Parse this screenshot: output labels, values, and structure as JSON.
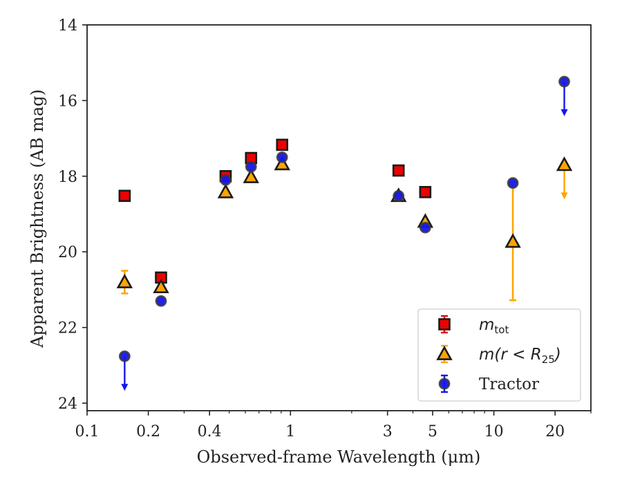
{
  "chart_data": {
    "type": "scatter",
    "xlabel": "Observed-frame Wavelength (μm)",
    "ylabel": "Apparent Brightness (AB mag)",
    "x_scale": "log",
    "xlim": [
      0.1,
      30
    ],
    "ylim": [
      24.2,
      14
    ],
    "y_inverted": true,
    "xticks": [
      {
        "value": 0.1,
        "label": "0.1"
      },
      {
        "value": 0.2,
        "label": "0.2"
      },
      {
        "value": 0.4,
        "label": "0.4"
      },
      {
        "value": 1,
        "label": "1"
      },
      {
        "value": 3,
        "label": "3"
      },
      {
        "value": 5,
        "label": "5"
      },
      {
        "value": 10,
        "label": "10"
      },
      {
        "value": 20,
        "label": "20"
      }
    ],
    "yticks": [
      {
        "value": 14,
        "label": "14"
      },
      {
        "value": 16,
        "label": "16"
      },
      {
        "value": 18,
        "label": "18"
      },
      {
        "value": 20,
        "label": "20"
      },
      {
        "value": 22,
        "label": "22"
      },
      {
        "value": 24,
        "label": "24"
      }
    ],
    "legend_position": "lower-right",
    "series": [
      {
        "name": "m_tot",
        "legend_main": "m",
        "legend_sub": "tot",
        "marker": "square",
        "face_color": "#ee0000",
        "edge_color": "#1a1a1a",
        "error_color": "#ee0000",
        "points": [
          {
            "x": 0.153,
            "y": 18.52
          },
          {
            "x": 0.231,
            "y": 20.68
          },
          {
            "x": 0.48,
            "y": 18.0
          },
          {
            "x": 0.64,
            "y": 17.52
          },
          {
            "x": 0.91,
            "y": 17.17
          },
          {
            "x": 3.4,
            "y": 17.85
          },
          {
            "x": 4.6,
            "y": 18.42
          }
        ]
      },
      {
        "name": "m(r < R25)",
        "legend_main": "m(r < R",
        "legend_sub": "25",
        "legend_end": ")",
        "marker": "triangle",
        "face_color": "#ffa500",
        "edge_color": "#1a1a1a",
        "error_color": "#ffa500",
        "points": [
          {
            "x": 0.153,
            "y": 20.8,
            "err": 0.3
          },
          {
            "x": 0.231,
            "y": 20.93
          },
          {
            "x": 0.48,
            "y": 18.42
          },
          {
            "x": 0.64,
            "y": 18.02
          },
          {
            "x": 0.91,
            "y": 17.68
          },
          {
            "x": 3.4,
            "y": 18.52
          },
          {
            "x": 4.6,
            "y": 19.2
          },
          {
            "x": 12.4,
            "y": 19.73,
            "err_low": 1.45,
            "err_high": 1.55
          },
          {
            "x": 22.2,
            "y": 17.7,
            "upper_limit": true
          }
        ]
      },
      {
        "name": "Tractor",
        "marker": "circle",
        "face_color": "#1515ee",
        "edge_color": "#3a3a3a",
        "error_color": "#1515ee",
        "points": [
          {
            "x": 0.153,
            "y": 22.76,
            "upper_limit": true
          },
          {
            "x": 0.231,
            "y": 21.3
          },
          {
            "x": 0.48,
            "y": 18.1
          },
          {
            "x": 0.64,
            "y": 17.75
          },
          {
            "x": 0.91,
            "y": 17.5
          },
          {
            "x": 3.4,
            "y": 18.52
          },
          {
            "x": 4.6,
            "y": 19.36
          },
          {
            "x": 12.4,
            "y": 18.18
          },
          {
            "x": 22.2,
            "y": 15.5,
            "upper_limit": true
          }
        ]
      }
    ]
  }
}
